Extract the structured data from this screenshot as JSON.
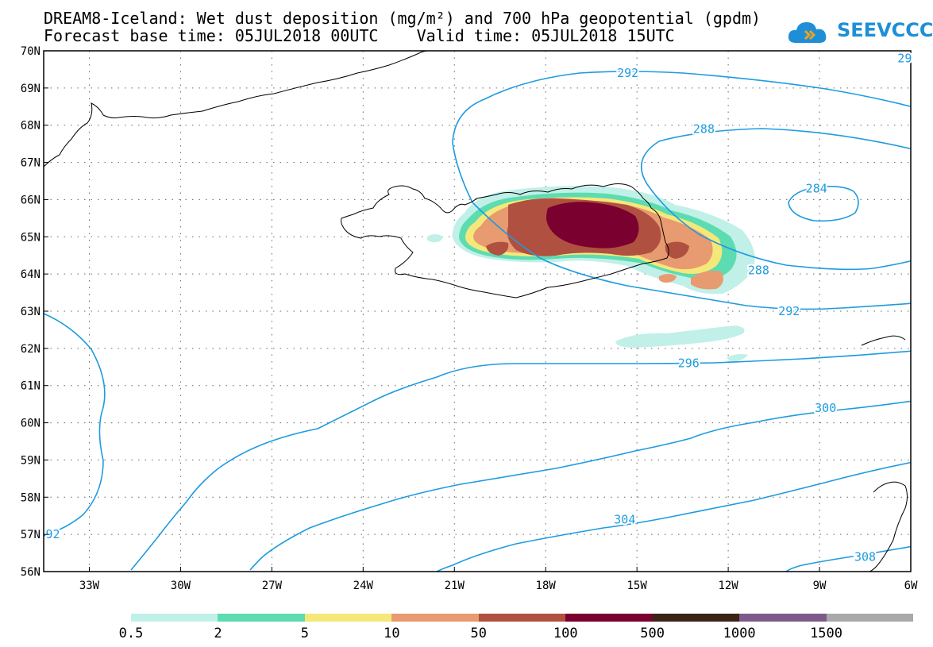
{
  "title": {
    "line1": "DREAM8-Iceland: Wet dust deposition (mg/m²) and 700 hPa geopotential (gpdm)",
    "line2": "Forecast base time: 05JUL2018 00UTC    Valid time: 05JUL2018 15UTC"
  },
  "logo": {
    "text": "SEEVCCC"
  },
  "map": {
    "lon_range": [
      -34.5,
      -6
    ],
    "lat_range": [
      56,
      70
    ],
    "lon_ticks": [
      -33,
      -30,
      -27,
      -24,
      -21,
      -18,
      -15,
      -12,
      -9,
      -6
    ],
    "lon_labels": [
      "33W",
      "30W",
      "27W",
      "24W",
      "21W",
      "18W",
      "15W",
      "12W",
      "9W",
      "6W"
    ],
    "lat_ticks": [
      70,
      69,
      68,
      67,
      66,
      65,
      64,
      63,
      62,
      61,
      60,
      59,
      58,
      57,
      56
    ],
    "lat_labels": [
      "70N",
      "69N",
      "68N",
      "67N",
      "66N",
      "65N",
      "64N",
      "63N",
      "62N",
      "61N",
      "60N",
      "59N",
      "58N",
      "57N",
      "56N"
    ],
    "contour_color": "#1e9be0",
    "contour_labels": [
      {
        "text": "292",
        "lon": -15.3,
        "lat": 69.4
      },
      {
        "text": "288",
        "lon": -12.8,
        "lat": 67.9
      },
      {
        "text": "284",
        "lon": -9.1,
        "lat": 66.3
      },
      {
        "text": "288",
        "lon": -11.0,
        "lat": 64.1
      },
      {
        "text": "292",
        "lon": -10.0,
        "lat": 63.0
      },
      {
        "text": "296",
        "lon": -13.3,
        "lat": 61.6
      },
      {
        "text": "300",
        "lon": -8.8,
        "lat": 60.4
      },
      {
        "text": "304",
        "lon": -15.4,
        "lat": 57.4
      },
      {
        "text": "308",
        "lon": -7.5,
        "lat": 56.4
      },
      {
        "text": "29",
        "lon": -6.2,
        "lat": 69.8
      },
      {
        "text": "92",
        "lon": -34.2,
        "lat": 57.0
      }
    ]
  },
  "legend": {
    "colors": [
      "#c0f0e8",
      "#5cdcb0",
      "#f5e87a",
      "#e89a70",
      "#b05040",
      "#7a0030",
      "#3a2418",
      "#7d5a8a",
      "#a9a9a9"
    ],
    "labels": [
      "0.5",
      "2",
      "5",
      "10",
      "50",
      "100",
      "500",
      "1000",
      "1500"
    ]
  }
}
